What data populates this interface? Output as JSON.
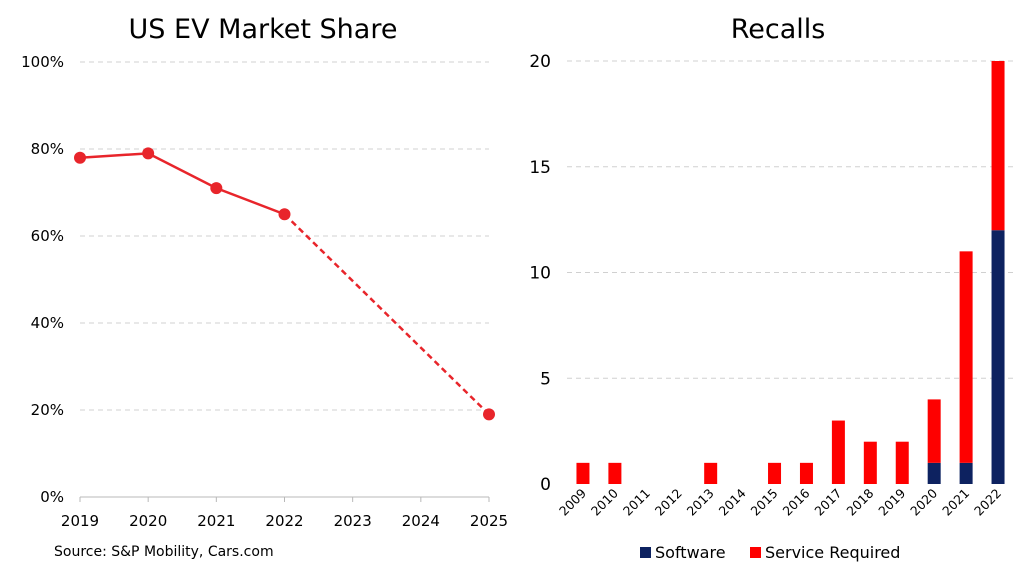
{
  "source_note": "Source: S&P Mobility, Cars.com",
  "chart_data": [
    {
      "type": "line",
      "title": "US EV Market Share",
      "x": [
        "2019",
        "2020",
        "2021",
        "2022",
        "2023",
        "2024",
        "2025"
      ],
      "series": [
        {
          "color": "#e8252b",
          "points": [
            {
              "x": "2019",
              "y": 78
            },
            {
              "x": "2020",
              "y": 79
            },
            {
              "x": "2021",
              "y": 71
            },
            {
              "x": "2022",
              "y": 65
            },
            {
              "x": "2025",
              "y": 19
            }
          ],
          "projected_from": "2022"
        }
      ],
      "ylim": [
        0,
        100
      ],
      "yticks": [
        0,
        20,
        40,
        60,
        80,
        100
      ],
      "ytick_labels": [
        "0%",
        "20%",
        "40%",
        "60%",
        "80%",
        "100%"
      ],
      "grid": "horizontal dashed"
    },
    {
      "type": "bar",
      "stacked": true,
      "title": "Recalls",
      "categories": [
        "2009",
        "2010",
        "2011",
        "2012",
        "2013",
        "2014",
        "2015",
        "2016",
        "2017",
        "2018",
        "2019",
        "2020",
        "2021",
        "2022"
      ],
      "series": [
        {
          "name": "Software",
          "color": "#0d2260",
          "values": [
            0,
            0,
            0,
            0,
            0,
            0,
            0,
            0,
            0,
            0,
            0,
            1,
            1,
            12
          ]
        },
        {
          "name": "Service Required",
          "color": "#fe0000",
          "values": [
            1,
            1,
            0,
            0,
            1,
            0,
            1,
            1,
            3,
            2,
            2,
            3,
            10,
            8
          ]
        }
      ],
      "ylim": [
        0,
        20
      ],
      "yticks": [
        0,
        5,
        10,
        15,
        20
      ],
      "grid": "horizontal dashed",
      "legend": "bottom"
    }
  ]
}
